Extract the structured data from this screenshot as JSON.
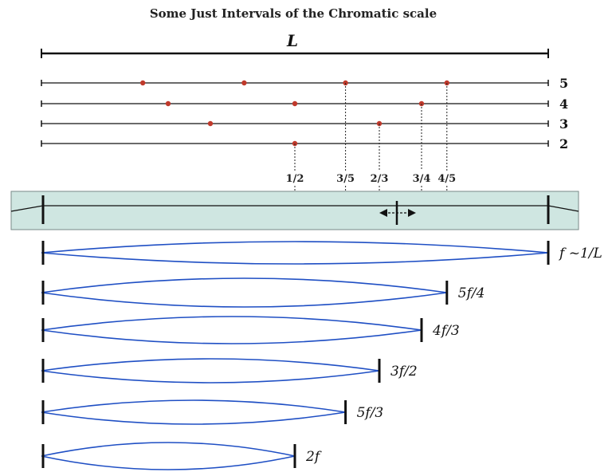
{
  "title": "Some Just Intervals of the Chromatic scale",
  "length_label": "L",
  "divisions": [
    {
      "label": "5",
      "n": 5
    },
    {
      "label": "4",
      "n": 4
    },
    {
      "label": "3",
      "n": 3
    },
    {
      "label": "2",
      "n": 2
    }
  ],
  "fractions": [
    {
      "label": "1/2",
      "value": 0.5
    },
    {
      "label": "3/5",
      "value": 0.6
    },
    {
      "label": "2/3",
      "value": 0.6667
    },
    {
      "label": "3/4",
      "value": 0.75
    },
    {
      "label": "4/5",
      "value": 0.8
    }
  ],
  "strings": [
    {
      "label": "f ~1/L",
      "length": 1.0
    },
    {
      "label": "5f/4",
      "length": 0.8
    },
    {
      "label": "4f/3",
      "length": 0.75
    },
    {
      "label": "3f/2",
      "length": 0.6667
    },
    {
      "label": "5f/3",
      "length": 0.6
    },
    {
      "label": "2f",
      "length": 0.5
    }
  ],
  "colors": {
    "dot": "#c0392b",
    "string_wave": "#1f4fc4",
    "board_fill": "#cfe6e1",
    "board_stroke": "#7a8a88"
  },
  "icons": {
    "slider": "double-arrow-icon"
  }
}
